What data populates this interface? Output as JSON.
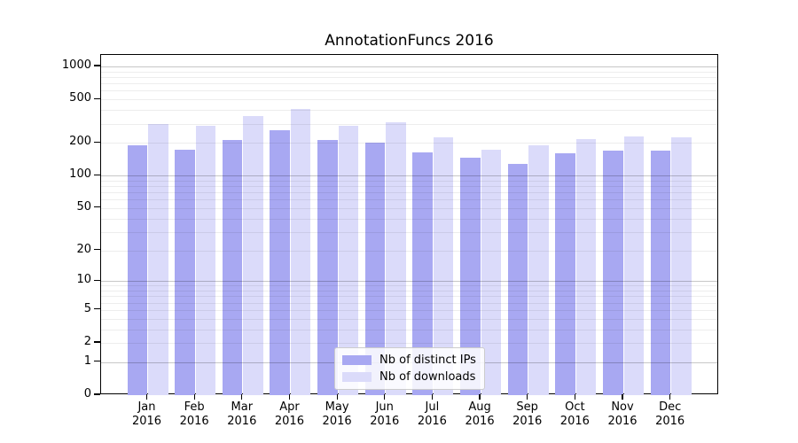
{
  "chart_data": {
    "type": "bar",
    "title": "AnnotationFuncs 2016",
    "categories": [
      "Jan",
      "Feb",
      "Mar",
      "Apr",
      "May",
      "Jun",
      "Jul",
      "Aug",
      "Sep",
      "Oct",
      "Nov",
      "Dec"
    ],
    "x_tick_second_line": "2016",
    "series": [
      {
        "name": "Nb of distinct IPs",
        "color": "#a8a8f2",
        "values": [
          190,
          174,
          214,
          262,
          212,
          202,
          164,
          147,
          128,
          160,
          170,
          170
        ]
      },
      {
        "name": "Nb of downloads",
        "color": "#dbdbfa",
        "values": [
          297,
          288,
          352,
          406,
          285,
          307,
          224,
          172,
          189,
          218,
          231,
          226
        ]
      }
    ],
    "yticks": [
      1000,
      500,
      200,
      100,
      50,
      20,
      10,
      5,
      2,
      1,
      0
    ],
    "yscale": "log1p",
    "ylim": [
      0,
      1275
    ],
    "xlabel": "",
    "ylabel": "",
    "grid": true,
    "legend_position": "lower center"
  }
}
